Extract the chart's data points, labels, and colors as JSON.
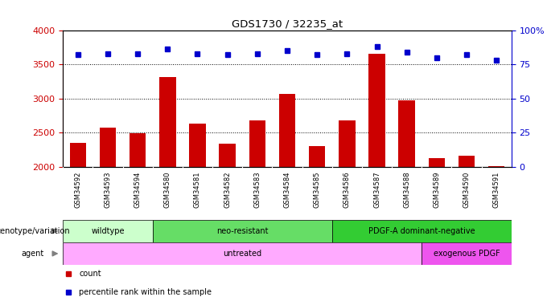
{
  "title": "GDS1730 / 32235_at",
  "samples": [
    "GSM34592",
    "GSM34593",
    "GSM34594",
    "GSM34580",
    "GSM34581",
    "GSM34582",
    "GSM34583",
    "GSM34584",
    "GSM34585",
    "GSM34586",
    "GSM34587",
    "GSM34588",
    "GSM34589",
    "GSM34590",
    "GSM34591"
  ],
  "counts": [
    2350,
    2580,
    2490,
    3320,
    2630,
    2340,
    2680,
    3070,
    2310,
    2680,
    3650,
    2970,
    2130,
    2170,
    2010
  ],
  "percentile_ranks": [
    82,
    83,
    83,
    86,
    83,
    82,
    83,
    85,
    82,
    83,
    88,
    84,
    80,
    82,
    78
  ],
  "ylim_left": [
    2000,
    4000
  ],
  "ylim_right": [
    0,
    100
  ],
  "left_ticks": [
    2000,
    2500,
    3000,
    3500,
    4000
  ],
  "right_ticks": [
    0,
    25,
    50,
    75,
    100
  ],
  "bar_color": "#cc0000",
  "dot_color": "#0000cc",
  "bar_bottom": 2000,
  "genotype_groups": [
    {
      "label": "wildtype",
      "start": 0,
      "end": 3,
      "color": "#ccffcc"
    },
    {
      "label": "neo-resistant",
      "start": 3,
      "end": 9,
      "color": "#66dd66"
    },
    {
      "label": "PDGF-A dominant-negative",
      "start": 9,
      "end": 15,
      "color": "#33cc33"
    }
  ],
  "agent_groups": [
    {
      "label": "untreated",
      "start": 0,
      "end": 12,
      "color": "#ffaaff"
    },
    {
      "label": "exogenous PDGF",
      "start": 12,
      "end": 15,
      "color": "#ee55ee"
    }
  ],
  "sample_bg_color": "#cccccc",
  "left_axis_color": "#cc0000",
  "right_axis_color": "#0000cc",
  "legend_items": [
    {
      "label": "count",
      "color": "#cc0000"
    },
    {
      "label": "percentile rank within the sample",
      "color": "#0000cc"
    }
  ],
  "grid_yticks": [
    2500,
    3000,
    3500
  ]
}
